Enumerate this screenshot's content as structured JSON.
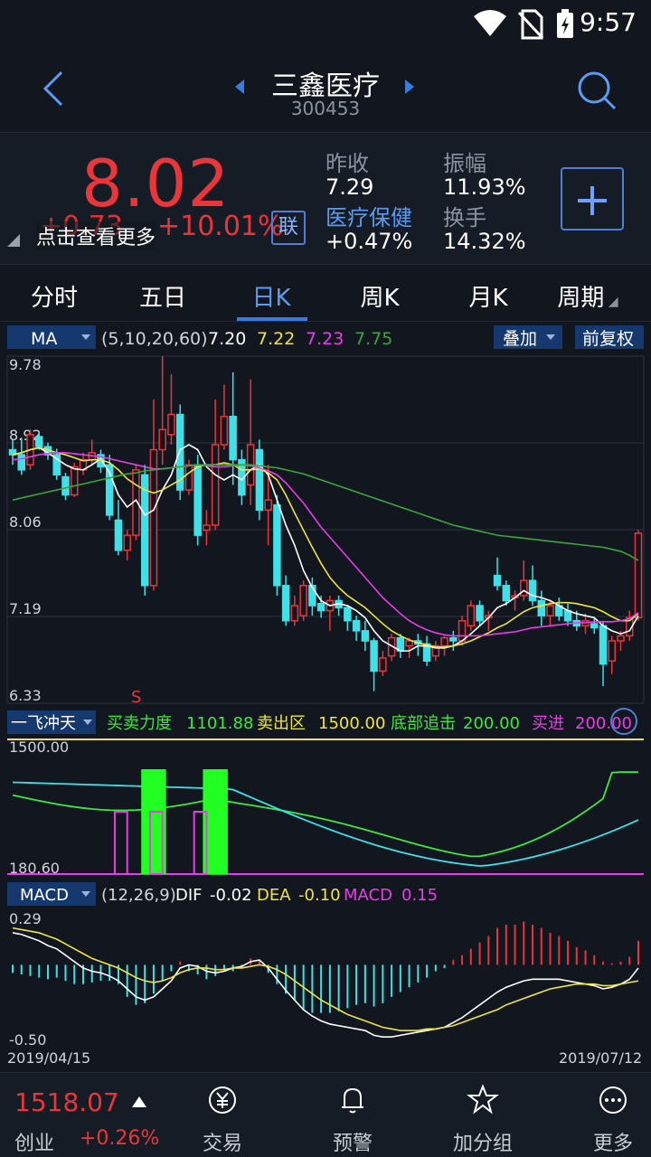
{
  "status": {
    "time": "9:57"
  },
  "stock": {
    "name": "三鑫医疗",
    "code": "300453"
  },
  "quote": {
    "price": "8.02",
    "change": "+0.73",
    "change_pct": "+10.01%",
    "hint": "点击查看更多",
    "lian": "联",
    "fields": {
      "prev_close_label": "昨收",
      "prev_close": "7.29",
      "amplitude_label": "振幅",
      "amplitude": "11.93%",
      "sector_label": "医疗保健",
      "sector_change": "+0.47%",
      "turnover_label": "换手",
      "turnover": "14.32%"
    }
  },
  "tabs": [
    "分时",
    "五日",
    "日K",
    "周K",
    "月K",
    "周期"
  ],
  "active_tab": 2,
  "chart_data": [
    {
      "type": "candlestick",
      "indicator": "MA",
      "params": "(5,10,20,60)",
      "ma_values": [
        {
          "name": "MA5",
          "value": "7.20",
          "color": "#ffffff"
        },
        {
          "name": "MA10",
          "value": "7.22",
          "color": "#f0e442"
        },
        {
          "name": "MA20",
          "value": "7.23",
          "color": "#e83ee8"
        },
        {
          "name": "MA60",
          "value": "7.75",
          "color": "#3aa63a"
        }
      ],
      "overlay_label": "叠加",
      "adjust_label": "前复权",
      "y_ticks": [
        "9.78",
        "8.92",
        "8.06",
        "7.19",
        "6.33"
      ],
      "ylim": [
        6.33,
        9.78
      ],
      "marker": "S",
      "candles": [
        [
          8.85,
          8.95,
          8.7,
          8.8
        ],
        [
          8.8,
          8.97,
          8.6,
          8.65
        ],
        [
          8.7,
          9.05,
          8.65,
          9.0
        ],
        [
          8.98,
          9.02,
          8.85,
          8.88
        ],
        [
          8.88,
          8.92,
          8.75,
          8.8
        ],
        [
          8.8,
          8.86,
          8.55,
          8.6
        ],
        [
          8.58,
          8.62,
          8.35,
          8.4
        ],
        [
          8.4,
          8.72,
          8.38,
          8.68
        ],
        [
          8.65,
          8.82,
          8.6,
          8.75
        ],
        [
          8.75,
          8.95,
          8.7,
          8.82
        ],
        [
          8.8,
          8.85,
          8.62,
          8.68
        ],
        [
          8.7,
          8.8,
          8.15,
          8.2
        ],
        [
          8.15,
          8.35,
          7.8,
          7.85
        ],
        [
          7.85,
          8.05,
          7.75,
          8.0
        ],
        [
          8.0,
          8.7,
          7.95,
          8.65
        ],
        [
          8.6,
          8.7,
          7.4,
          7.5
        ],
        [
          7.5,
          9.35,
          7.45,
          8.85
        ],
        [
          8.85,
          9.78,
          8.7,
          9.05
        ],
        [
          9.0,
          9.6,
          8.9,
          9.2
        ],
        [
          9.2,
          9.3,
          8.35,
          8.45
        ],
        [
          8.45,
          8.75,
          8.4,
          8.7
        ],
        [
          8.7,
          8.8,
          7.9,
          8.0
        ],
        [
          8.05,
          8.25,
          7.9,
          8.1
        ],
        [
          8.1,
          9.35,
          8.05,
          8.9
        ],
        [
          8.9,
          9.5,
          8.85,
          9.18
        ],
        [
          9.18,
          9.62,
          8.5,
          8.75
        ],
        [
          8.75,
          8.85,
          8.3,
          8.4
        ],
        [
          8.5,
          9.55,
          8.3,
          8.9
        ],
        [
          8.85,
          8.95,
          8.15,
          8.25
        ],
        [
          8.25,
          8.7,
          7.9,
          8.35
        ],
        [
          8.3,
          8.4,
          7.4,
          7.5
        ],
        [
          7.5,
          7.6,
          7.1,
          7.15
        ],
        [
          7.15,
          7.4,
          7.1,
          7.3
        ],
        [
          7.2,
          7.55,
          7.15,
          7.5
        ],
        [
          7.5,
          7.58,
          7.2,
          7.3
        ],
        [
          7.32,
          7.4,
          7.18,
          7.25
        ],
        [
          7.25,
          7.4,
          7.05,
          7.35
        ],
        [
          7.35,
          7.4,
          7.2,
          7.28
        ],
        [
          7.28,
          7.3,
          7.05,
          7.15
        ],
        [
          7.15,
          7.2,
          6.95,
          7.05
        ],
        [
          7.05,
          7.15,
          6.85,
          6.95
        ],
        [
          6.95,
          6.98,
          6.45,
          6.65
        ],
        [
          6.65,
          6.85,
          6.6,
          6.78
        ],
        [
          6.8,
          7.02,
          6.75,
          6.98
        ],
        [
          6.98,
          7.02,
          6.78,
          6.85
        ],
        [
          6.9,
          6.98,
          6.78,
          6.95
        ],
        [
          6.95,
          7.02,
          6.8,
          6.92
        ],
        [
          6.92,
          7.0,
          6.7,
          6.75
        ],
        [
          6.8,
          6.95,
          6.75,
          6.9
        ],
        [
          6.9,
          7.0,
          6.8,
          6.98
        ],
        [
          6.98,
          7.05,
          6.85,
          6.95
        ],
        [
          6.95,
          7.2,
          6.9,
          7.15
        ],
        [
          7.1,
          7.35,
          7.05,
          7.3
        ],
        [
          7.3,
          7.35,
          7.1,
          7.15
        ],
        [
          7.18,
          7.25,
          7.05,
          7.2
        ],
        [
          7.6,
          7.78,
          7.45,
          7.5
        ],
        [
          7.5,
          7.55,
          7.3,
          7.35
        ],
        [
          7.38,
          7.45,
          7.25,
          7.4
        ],
        [
          7.4,
          7.75,
          7.35,
          7.55
        ],
        [
          7.55,
          7.7,
          7.3,
          7.35
        ],
        [
          7.35,
          7.45,
          7.1,
          7.2
        ],
        [
          7.2,
          7.35,
          7.1,
          7.3
        ],
        [
          7.3,
          7.38,
          7.15,
          7.2
        ],
        [
          7.25,
          7.32,
          7.1,
          7.15
        ],
        [
          7.15,
          7.25,
          7.05,
          7.1
        ],
        [
          7.1,
          7.22,
          7.02,
          7.15
        ],
        [
          7.12,
          7.18,
          7.02,
          7.08
        ],
        [
          7.1,
          7.15,
          6.5,
          6.72
        ],
        [
          6.75,
          7.0,
          6.62,
          6.95
        ],
        [
          6.95,
          7.05,
          6.85,
          7.0
        ],
        [
          7.0,
          7.25,
          6.95,
          7.18
        ],
        [
          7.18,
          8.05,
          7.15,
          8.02
        ]
      ],
      "ma_series": {
        "MA5": [
          8.8,
          8.82,
          8.85,
          8.87,
          8.82,
          8.76,
          8.7,
          8.66,
          8.65,
          8.7,
          8.76,
          8.62,
          8.4,
          8.28,
          8.35,
          8.2,
          8.25,
          8.45,
          8.6,
          8.85,
          8.9,
          8.85,
          8.68,
          8.6,
          8.55,
          8.6,
          8.55,
          8.65,
          8.7,
          8.6,
          8.35,
          8.1,
          7.9,
          7.65,
          7.48,
          7.35,
          7.3,
          7.32,
          7.3,
          7.25,
          7.18,
          7.05,
          6.95,
          6.9,
          6.85,
          6.85,
          6.9,
          6.9,
          6.88,
          6.88,
          6.9,
          6.95,
          7.02,
          7.1,
          7.18,
          7.28,
          7.32,
          7.38,
          7.45,
          7.4,
          7.38,
          7.35,
          7.3,
          7.25,
          7.22,
          7.2,
          7.18,
          7.1,
          7.05,
          7.02,
          7.05,
          7.2
        ],
        "MA10": [
          8.8,
          8.82,
          8.85,
          8.87,
          8.85,
          8.82,
          8.8,
          8.77,
          8.74,
          8.75,
          8.75,
          8.72,
          8.65,
          8.56,
          8.5,
          8.45,
          8.42,
          8.45,
          8.5,
          8.55,
          8.62,
          8.68,
          8.7,
          8.7,
          8.72,
          8.7,
          8.65,
          8.65,
          8.66,
          8.62,
          8.55,
          8.4,
          8.22,
          8.05,
          7.88,
          7.72,
          7.58,
          7.48,
          7.4,
          7.34,
          7.28,
          7.2,
          7.12,
          7.05,
          7.0,
          6.96,
          6.93,
          6.91,
          6.89,
          6.89,
          6.9,
          6.92,
          6.95,
          6.99,
          7.03,
          7.08,
          7.12,
          7.18,
          7.24,
          7.28,
          7.3,
          7.32,
          7.33,
          7.33,
          7.32,
          7.3,
          7.28,
          7.24,
          7.19,
          7.15,
          7.15,
          7.22
        ],
        "MA20": [
          8.75,
          8.76,
          8.78,
          8.8,
          8.81,
          8.82,
          8.82,
          8.81,
          8.8,
          8.79,
          8.78,
          8.76,
          8.74,
          8.72,
          8.7,
          8.68,
          8.66,
          8.66,
          8.67,
          8.68,
          8.69,
          8.7,
          8.69,
          8.68,
          8.68,
          8.69,
          8.7,
          8.69,
          8.67,
          8.64,
          8.6,
          8.52,
          8.42,
          8.32,
          8.2,
          8.08,
          7.98,
          7.88,
          7.78,
          7.68,
          7.58,
          7.48,
          7.38,
          7.3,
          7.22,
          7.15,
          7.1,
          7.06,
          7.03,
          7.01,
          7.0,
          7.0,
          7.0,
          7.0,
          7.01,
          7.02,
          7.03,
          7.04,
          7.06,
          7.08,
          7.09,
          7.1,
          7.11,
          7.12,
          7.13,
          7.13,
          7.14,
          7.14,
          7.14,
          7.15,
          7.17,
          7.23
        ],
        "MA60": [
          8.35,
          8.37,
          8.39,
          8.41,
          8.43,
          8.45,
          8.47,
          8.49,
          8.51,
          8.53,
          8.55,
          8.57,
          8.59,
          8.61,
          8.62,
          8.64,
          8.65,
          8.66,
          8.67,
          8.68,
          8.69,
          8.7,
          8.7,
          8.7,
          8.7,
          8.7,
          8.7,
          8.7,
          8.69,
          8.68,
          8.67,
          8.65,
          8.63,
          8.61,
          8.58,
          8.55,
          8.52,
          8.49,
          8.46,
          8.43,
          8.4,
          8.37,
          8.34,
          8.31,
          8.28,
          8.25,
          8.22,
          8.19,
          8.16,
          8.13,
          8.1,
          8.08,
          8.06,
          8.04,
          8.02,
          8.0,
          7.99,
          7.98,
          7.97,
          7.96,
          7.95,
          7.94,
          7.93,
          7.92,
          7.91,
          7.9,
          7.89,
          7.88,
          7.86,
          7.84,
          7.8,
          7.75
        ]
      }
    },
    {
      "type": "line",
      "indicator": "一飞冲天",
      "legend": [
        {
          "label": "买卖力度",
          "value": "1101.88",
          "color": "#3ee83e"
        },
        {
          "label": "卖出区",
          "value": "1500.00",
          "color": "#f0e442"
        },
        {
          "label": "底部追击",
          "value": "200.00",
          "color": "#3ee83e"
        },
        {
          "label": "买进",
          "value": "200.00",
          "color": "#e83ee8"
        }
      ],
      "y_ticks": [
        "1500.00",
        "180.60"
      ]
    },
    {
      "type": "macd",
      "indicator": "MACD",
      "params": "(12,26,9)",
      "legend": [
        {
          "label": "DIF",
          "value": "-0.02",
          "color": "#ffffff"
        },
        {
          "label": "DEA",
          "value": "-0.10",
          "color": "#f0e442"
        },
        {
          "label": "MACD",
          "value": "0.15",
          "color": "#e83ee8"
        }
      ],
      "y_ticks": [
        "0.29",
        "-0.50"
      ],
      "x_labels": [
        "2019/04/15",
        "2019/07/12"
      ],
      "hist": [
        -0.05,
        -0.06,
        -0.07,
        -0.08,
        -0.09,
        -0.08,
        -0.1,
        -0.12,
        -0.12,
        -0.11,
        -0.1,
        -0.1,
        -0.12,
        -0.2,
        -0.25,
        -0.24,
        -0.18,
        -0.1,
        -0.04,
        0.02,
        -0.04,
        -0.06,
        -0.09,
        -0.07,
        -0.03,
        -0.04,
        -0.02,
        0.04,
        0.03,
        -0.05,
        -0.12,
        -0.18,
        -0.22,
        -0.28,
        -0.3,
        -0.3,
        -0.3,
        -0.29,
        -0.27,
        -0.25,
        -0.24,
        -0.26,
        -0.24,
        -0.2,
        -0.17,
        -0.14,
        -0.11,
        -0.08,
        -0.04,
        -0.02,
        0.03,
        0.06,
        0.1,
        0.14,
        0.18,
        0.23,
        0.25,
        0.25,
        0.27,
        0.25,
        0.23,
        0.2,
        0.18,
        0.15,
        0.11,
        0.09,
        0.06,
        0.02,
        0.01,
        0.02,
        0.05,
        0.15
      ],
      "dif": [
        0.2,
        0.19,
        0.17,
        0.15,
        0.12,
        0.1,
        0.06,
        0.02,
        -0.02,
        -0.04,
        -0.05,
        -0.07,
        -0.1,
        -0.15,
        -0.2,
        -0.22,
        -0.2,
        -0.15,
        -0.1,
        -0.02,
        0.0,
        -0.01,
        -0.04,
        -0.05,
        -0.04,
        -0.02,
        -0.01,
        0.02,
        0.03,
        -0.02,
        -0.09,
        -0.16,
        -0.22,
        -0.28,
        -0.32,
        -0.35,
        -0.37,
        -0.38,
        -0.39,
        -0.4,
        -0.41,
        -0.44,
        -0.45,
        -0.45,
        -0.44,
        -0.43,
        -0.42,
        -0.41,
        -0.4,
        -0.39,
        -0.36,
        -0.33,
        -0.29,
        -0.25,
        -0.21,
        -0.17,
        -0.14,
        -0.12,
        -0.1,
        -0.09,
        -0.09,
        -0.09,
        -0.09,
        -0.1,
        -0.11,
        -0.12,
        -0.13,
        -0.15,
        -0.14,
        -0.12,
        -0.09,
        -0.02
      ],
      "dea": [
        0.23,
        0.22,
        0.21,
        0.2,
        0.18,
        0.16,
        0.13,
        0.1,
        0.07,
        0.04,
        0.02,
        0.0,
        -0.02,
        -0.05,
        -0.08,
        -0.1,
        -0.11,
        -0.1,
        -0.08,
        -0.05,
        -0.03,
        -0.02,
        -0.02,
        -0.03,
        -0.03,
        -0.02,
        -0.02,
        -0.01,
        0.0,
        -0.01,
        -0.03,
        -0.06,
        -0.1,
        -0.14,
        -0.18,
        -0.22,
        -0.25,
        -0.28,
        -0.31,
        -0.33,
        -0.35,
        -0.37,
        -0.39,
        -0.4,
        -0.41,
        -0.41,
        -0.41,
        -0.4,
        -0.4,
        -0.39,
        -0.38,
        -0.36,
        -0.34,
        -0.32,
        -0.3,
        -0.28,
        -0.25,
        -0.23,
        -0.21,
        -0.19,
        -0.17,
        -0.15,
        -0.14,
        -0.13,
        -0.12,
        -0.12,
        -0.12,
        -0.13,
        -0.13,
        -0.12,
        -0.11,
        -0.1
      ]
    }
  ],
  "index": {
    "value": "1518.07",
    "name": "创业",
    "change_pct": "+0.26%"
  },
  "bottom_nav": [
    "交易",
    "预警",
    "加分组",
    "更多"
  ]
}
